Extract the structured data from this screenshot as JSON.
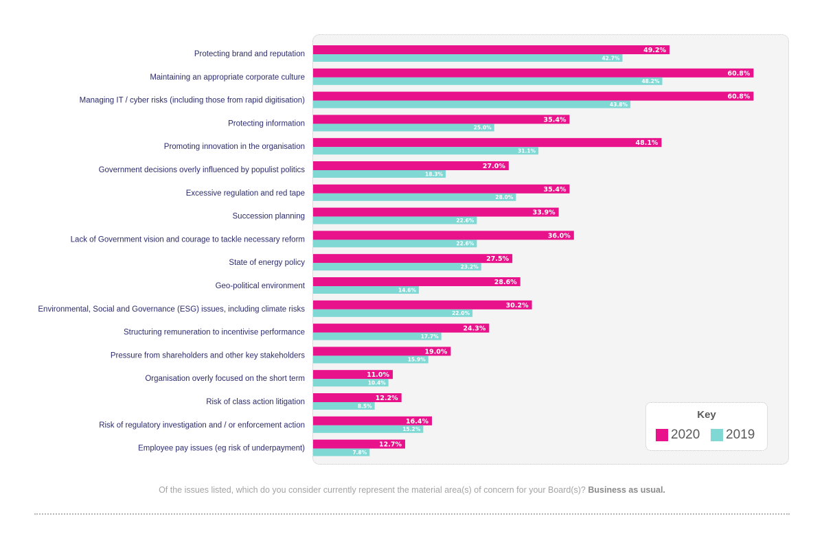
{
  "chart_data": {
    "type": "bar",
    "orientation": "horizontal",
    "categories": [
      "Protecting brand and reputation",
      "Maintaining an appropriate corporate culture",
      "Managing IT / cyber risks (including those from rapid digitisation)",
      "Protecting information",
      "Promoting innovation in the organisation",
      "Government decisions overly influenced by populist politics",
      "Excessive regulation and red tape",
      "Succession planning",
      "Lack of Government vision and courage to tackle necessary reform",
      "State of energy policy",
      "Geo-political environment",
      "Environmental, Social and Governance (ESG) issues, including climate risks",
      "Structuring remuneration to incentivise performance",
      "Pressure from shareholders and other key stakeholders",
      "Organisation overly focused on the short term",
      "Risk of class action litigation",
      "Risk of regulatory investigation and / or enforcement action",
      "Employee pay issues (eg risk of underpayment)"
    ],
    "series": [
      {
        "name": "2020",
        "color": "#e8128a",
        "values": [
          49.2,
          60.8,
          60.8,
          35.4,
          48.1,
          27.0,
          35.4,
          33.9,
          36.0,
          27.5,
          28.6,
          30.2,
          24.3,
          19.0,
          11.0,
          12.2,
          16.4,
          12.7
        ],
        "labels": [
          "49.2%",
          "60.8%",
          "60.8%",
          "35.4%",
          "48.1%",
          "27.0%",
          "35.4%",
          "33.9%",
          "36.0%",
          "27.5%",
          "28.6%",
          "30.2%",
          "24.3%",
          "19.0%",
          "11.0%",
          "12.2%",
          "16.4%",
          "12.7%"
        ]
      },
      {
        "name": "2019",
        "color": "#7fd8d4",
        "values": [
          42.7,
          48.2,
          43.8,
          25.0,
          31.1,
          18.3,
          28.0,
          22.6,
          22.6,
          23.2,
          14.6,
          22.0,
          17.7,
          15.9,
          10.4,
          8.5,
          15.2,
          7.8
        ],
        "labels": [
          "42.7%",
          "48.2%",
          "43.8%",
          "25.0%",
          "31.1%",
          "18.3%",
          "28.0%",
          "22.6%",
          "22.6%",
          "23.2%",
          "14.6%",
          "22.0%",
          "17.7%",
          "15.9%",
          "10.4%",
          "8.5%",
          "15.2%",
          "7.8%"
        ]
      }
    ],
    "xlim": [
      0,
      100
    ],
    "grid": false,
    "legend": {
      "title": "Key",
      "position": "bottom-right"
    }
  },
  "caption": {
    "text": "Of the issues listed, which do you consider currently represent the material area(s) of concern for your Board(s)?",
    "bold": "Business as usual."
  }
}
